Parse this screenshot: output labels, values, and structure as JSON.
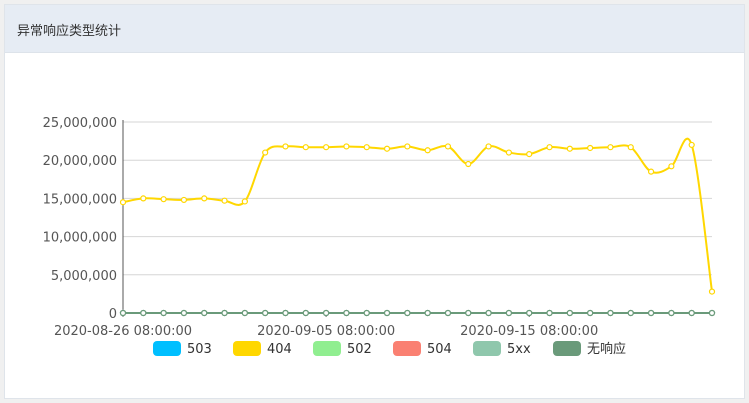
{
  "panel": {
    "title": "异常响应类型统计"
  },
  "colors": {
    "503": "#00bfff",
    "404": "#ffd700",
    "502": "#90ee90",
    "504": "#fa8072",
    "5xx": "#8fc7ac",
    "无响应": "#6a9a7a"
  },
  "chart_data": {
    "type": "line",
    "x_labels": [
      "2020-08-26 08:00:00",
      "2020-09-05 08:00:00",
      "2020-09-15 08:00:00"
    ],
    "y_ticks": [
      "0",
      "5,000,000",
      "10,000,000",
      "15,000,000",
      "20,000,000",
      "25,000,000"
    ],
    "ylim": [
      0,
      25000000
    ],
    "grid": true,
    "legend_position": "bottom",
    "x_points": [
      "2020-08-26",
      "2020-08-27",
      "2020-08-28",
      "2020-08-29",
      "2020-08-30",
      "2020-08-31",
      "2020-09-01",
      "2020-09-02",
      "2020-09-03",
      "2020-09-04",
      "2020-09-05",
      "2020-09-06",
      "2020-09-07",
      "2020-09-08",
      "2020-09-09",
      "2020-09-10",
      "2020-09-11",
      "2020-09-12",
      "2020-09-13",
      "2020-09-14",
      "2020-09-15",
      "2020-09-16",
      "2020-09-17",
      "2020-09-18",
      "2020-09-19",
      "2020-09-20",
      "2020-09-21",
      "2020-09-22",
      "2020-09-23",
      "2020-09-24"
    ],
    "series": [
      {
        "name": "503",
        "values": [
          0,
          0,
          0,
          0,
          0,
          0,
          0,
          0,
          0,
          0,
          0,
          0,
          0,
          0,
          0,
          0,
          0,
          0,
          0,
          0,
          0,
          0,
          0,
          0,
          0,
          0,
          0,
          0,
          0,
          0
        ]
      },
      {
        "name": "404",
        "values": [
          14500000,
          15000000,
          14900000,
          14800000,
          15000000,
          14700000,
          14600000,
          21000000,
          21800000,
          21700000,
          21700000,
          21800000,
          21700000,
          21500000,
          21800000,
          21300000,
          21800000,
          19500000,
          21800000,
          21000000,
          20800000,
          21700000,
          21500000,
          21600000,
          21700000,
          21700000,
          18500000,
          19200000,
          22000000,
          2800000
        ]
      },
      {
        "name": "502",
        "values": [
          0,
          0,
          0,
          0,
          0,
          0,
          0,
          0,
          0,
          0,
          0,
          0,
          0,
          0,
          0,
          0,
          0,
          0,
          0,
          0,
          0,
          0,
          0,
          0,
          0,
          0,
          0,
          0,
          0,
          0
        ]
      },
      {
        "name": "504",
        "values": [
          0,
          0,
          0,
          0,
          0,
          0,
          0,
          0,
          0,
          0,
          0,
          0,
          0,
          0,
          0,
          0,
          0,
          0,
          0,
          0,
          0,
          0,
          0,
          0,
          0,
          0,
          0,
          0,
          0,
          0
        ]
      },
      {
        "name": "5xx",
        "values": [
          0,
          0,
          0,
          0,
          0,
          0,
          0,
          0,
          0,
          0,
          0,
          0,
          0,
          0,
          0,
          0,
          0,
          0,
          0,
          0,
          0,
          0,
          0,
          0,
          0,
          0,
          0,
          0,
          0,
          0
        ]
      },
      {
        "name": "无响应",
        "values": [
          0,
          0,
          0,
          0,
          0,
          0,
          0,
          0,
          0,
          0,
          0,
          0,
          0,
          0,
          0,
          0,
          0,
          0,
          0,
          0,
          0,
          0,
          0,
          0,
          0,
          0,
          0,
          0,
          0,
          0
        ]
      }
    ],
    "legend": [
      "503",
      "404",
      "502",
      "504",
      "5xx",
      "无响应"
    ]
  }
}
